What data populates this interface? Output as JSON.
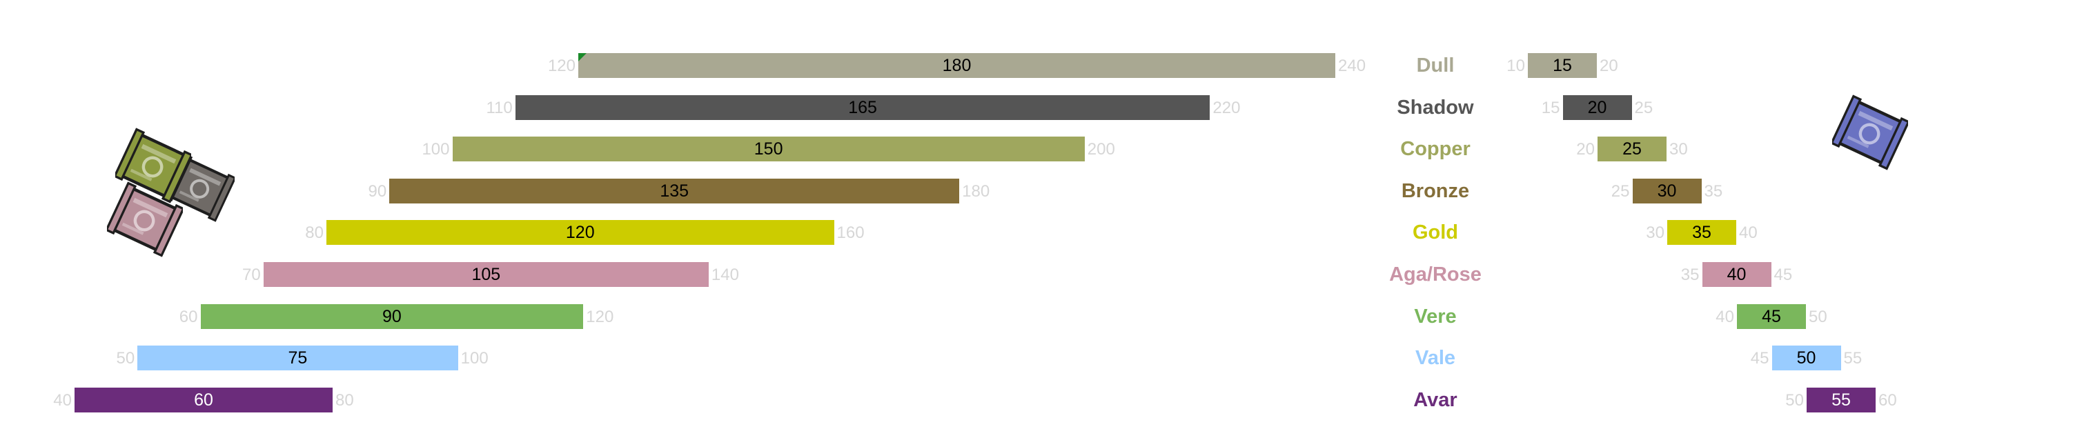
{
  "chart_data": {
    "type": "bar",
    "tiers": [
      {
        "name": "Dull",
        "color": "#a9a892",
        "text_color": "#000000",
        "big": {
          "value": 180,
          "min": 120,
          "max": 240
        },
        "small": {
          "value": 15,
          "min": 10,
          "max": 20
        }
      },
      {
        "name": "Shadow",
        "color": "#555555",
        "text_color": "#000000",
        "big": {
          "value": 165,
          "min": 110,
          "max": 220
        },
        "small": {
          "value": 20,
          "min": 15,
          "max": 25
        }
      },
      {
        "name": "Copper",
        "color": "#9fa75e",
        "text_color": "#000000",
        "big": {
          "value": 150,
          "min": 100,
          "max": 200
        },
        "small": {
          "value": 25,
          "min": 20,
          "max": 30
        }
      },
      {
        "name": "Bronze",
        "color": "#846e39",
        "text_color": "#000000",
        "big": {
          "value": 135,
          "min": 90,
          "max": 180
        },
        "small": {
          "value": 30,
          "min": 25,
          "max": 35
        }
      },
      {
        "name": "Gold",
        "color": "#cccc00",
        "text_color": "#000000",
        "big": {
          "value": 120,
          "min": 80,
          "max": 160
        },
        "small": {
          "value": 35,
          "min": 30,
          "max": 40
        }
      },
      {
        "name": "Aga/Rose",
        "color": "#c993a5",
        "text_color": "#000000",
        "big": {
          "value": 105,
          "min": 70,
          "max": 140
        },
        "small": {
          "value": 40,
          "min": 35,
          "max": 45
        }
      },
      {
        "name": "Vere",
        "color": "#7ab75c",
        "text_color": "#000000",
        "big": {
          "value": 90,
          "min": 60,
          "max": 120
        },
        "small": {
          "value": 45,
          "min": 40,
          "max": 50
        }
      },
      {
        "name": "Vale",
        "color": "#99ccff",
        "text_color": "#000000",
        "big": {
          "value": 75,
          "min": 50,
          "max": 100
        },
        "small": {
          "value": 50,
          "min": 45,
          "max": 55
        }
      },
      {
        "name": "Avar",
        "color": "#6b2c7b",
        "text_color": "#ffffff",
        "big": {
          "value": 60,
          "min": 40,
          "max": 80
        },
        "small": {
          "value": 55,
          "min": 50,
          "max": 60
        }
      }
    ],
    "icons": {
      "left": [
        {
          "name": "olive-scroll-icon",
          "color": "#8b9a3f"
        },
        {
          "name": "grey-scroll-icon",
          "color": "#6f6a66"
        },
        {
          "name": "pink-scroll-icon",
          "color": "#b88f9a"
        }
      ],
      "right": [
        {
          "name": "blue-scroll-icon",
          "color": "#6a72c2"
        }
      ]
    }
  }
}
